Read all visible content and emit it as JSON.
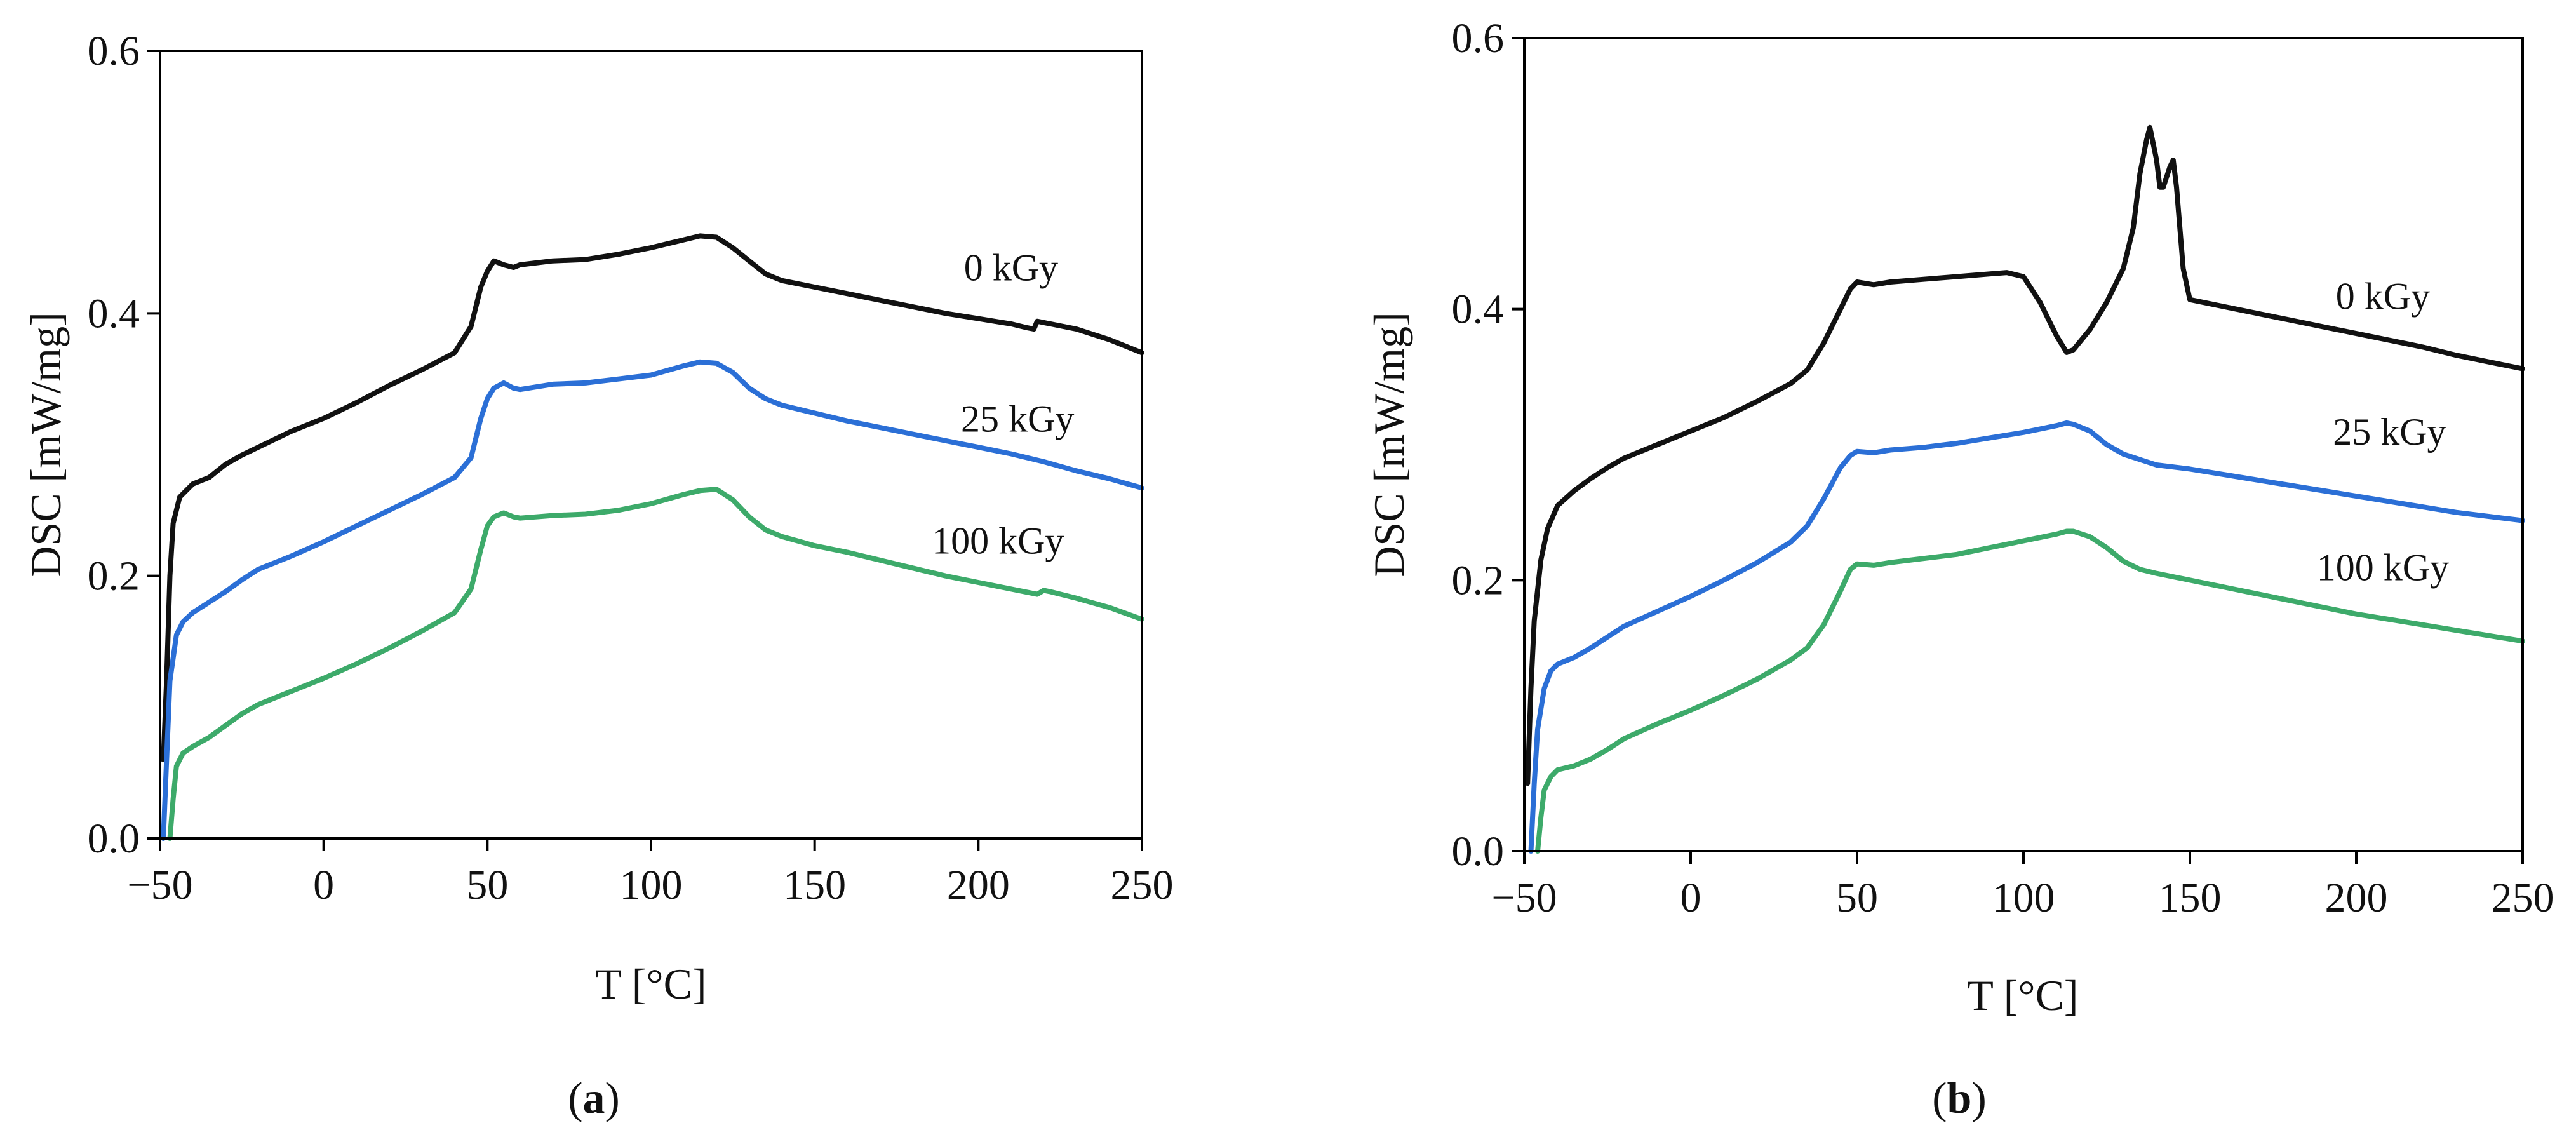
{
  "colors": {
    "0 kGy": "#111111",
    "25 kGy": "#2b6fd6",
    "100 kGy": "#3daa6a"
  },
  "chart_data": [
    {
      "type": "line",
      "panel": "a",
      "caption": {
        "open": "(",
        "letter": "a",
        "close": ")"
      },
      "xlabel": "T [°C]",
      "ylabel": "DSC [mW/mg]",
      "xlim": [
        -50,
        250
      ],
      "ylim": [
        0,
        0.6
      ],
      "xticks": [
        -50,
        0,
        50,
        100,
        150,
        200,
        250
      ],
      "xtick_labels": [
        "−50",
        "0",
        "50",
        "100",
        "150",
        "200",
        "250"
      ],
      "yticks": [
        0,
        0.2,
        0.4,
        0.6
      ],
      "ytick_labels": [
        "0.0",
        "0.2",
        "0.4",
        "0.6"
      ],
      "series": [
        {
          "name": "0 kGy",
          "label_at": [
            210,
            0.425
          ],
          "x": [
            -49,
            -48,
            -47,
            -46,
            -44,
            -42,
            -40,
            -35,
            -30,
            -25,
            -20,
            -10,
            0,
            10,
            20,
            30,
            40,
            45,
            48,
            50,
            52,
            55,
            58,
            60,
            70,
            80,
            90,
            100,
            110,
            115,
            120,
            125,
            130,
            135,
            140,
            150,
            160,
            170,
            180,
            190,
            200,
            210,
            215,
            217,
            218,
            220,
            230,
            240,
            250
          ],
          "y": [
            0.06,
            0.12,
            0.2,
            0.24,
            0.26,
            0.265,
            0.27,
            0.275,
            0.285,
            0.292,
            0.298,
            0.31,
            0.32,
            0.332,
            0.345,
            0.357,
            0.37,
            0.39,
            0.42,
            0.432,
            0.44,
            0.437,
            0.435,
            0.437,
            0.44,
            0.441,
            0.445,
            0.45,
            0.456,
            0.459,
            0.458,
            0.45,
            0.44,
            0.43,
            0.425,
            0.42,
            0.415,
            0.41,
            0.405,
            0.4,
            0.396,
            0.392,
            0.389,
            0.388,
            0.394,
            0.393,
            0.388,
            0.38,
            0.37
          ]
        },
        {
          "name": "25 kGy",
          "label_at": [
            212,
            0.31
          ],
          "x": [
            -49,
            -48,
            -47,
            -45,
            -43,
            -40,
            -35,
            -30,
            -25,
            -20,
            -10,
            0,
            10,
            20,
            30,
            40,
            45,
            48,
            50,
            52,
            55,
            58,
            60,
            70,
            80,
            90,
            100,
            110,
            115,
            120,
            125,
            130,
            135,
            140,
            150,
            160,
            170,
            180,
            190,
            200,
            210,
            220,
            230,
            240,
            250
          ],
          "y": [
            0.0,
            0.06,
            0.12,
            0.155,
            0.165,
            0.172,
            0.18,
            0.188,
            0.197,
            0.205,
            0.215,
            0.226,
            0.238,
            0.25,
            0.262,
            0.275,
            0.29,
            0.32,
            0.335,
            0.343,
            0.347,
            0.343,
            0.342,
            0.346,
            0.347,
            0.35,
            0.353,
            0.36,
            0.363,
            0.362,
            0.355,
            0.343,
            0.335,
            0.33,
            0.324,
            0.318,
            0.313,
            0.308,
            0.303,
            0.298,
            0.293,
            0.287,
            0.28,
            0.274,
            0.267
          ]
        },
        {
          "name": "100 kGy",
          "label_at": [
            206,
            0.217
          ],
          "x": [
            -47,
            -46,
            -45,
            -43,
            -40,
            -35,
            -30,
            -25,
            -20,
            -10,
            0,
            10,
            20,
            30,
            40,
            45,
            48,
            50,
            52,
            55,
            58,
            60,
            70,
            80,
            90,
            100,
            110,
            115,
            120,
            125,
            130,
            135,
            140,
            150,
            160,
            170,
            180,
            190,
            200,
            210,
            218,
            220,
            222,
            230,
            240,
            250
          ],
          "y": [
            0.0,
            0.03,
            0.055,
            0.065,
            0.07,
            0.077,
            0.086,
            0.095,
            0.102,
            0.112,
            0.122,
            0.133,
            0.145,
            0.158,
            0.172,
            0.19,
            0.22,
            0.238,
            0.245,
            0.248,
            0.245,
            0.244,
            0.246,
            0.247,
            0.25,
            0.255,
            0.262,
            0.265,
            0.266,
            0.258,
            0.245,
            0.235,
            0.23,
            0.223,
            0.218,
            0.212,
            0.206,
            0.2,
            0.195,
            0.19,
            0.186,
            0.189,
            0.188,
            0.183,
            0.176,
            0.167
          ]
        }
      ]
    },
    {
      "type": "line",
      "panel": "b",
      "caption": {
        "open": "(",
        "letter": "b",
        "close": ")"
      },
      "xlabel": "T [°C]",
      "ylabel": "DSC [mW/mg]",
      "xlim": [
        -50,
        250
      ],
      "ylim": [
        0,
        0.6
      ],
      "xticks": [
        -50,
        0,
        50,
        100,
        150,
        200,
        250
      ],
      "xtick_labels": [
        "−50",
        "0",
        "50",
        "100",
        "150",
        "200",
        "250"
      ],
      "yticks": [
        0,
        0.2,
        0.4,
        0.6
      ],
      "ytick_labels": [
        "0.0",
        "0.2",
        "0.4",
        "0.6"
      ],
      "series": [
        {
          "name": "0 kGy",
          "label_at": [
            208,
            0.4
          ],
          "x": [
            -49,
            -48,
            -47,
            -45,
            -43,
            -40,
            -35,
            -30,
            -25,
            -20,
            -10,
            0,
            10,
            20,
            30,
            35,
            40,
            45,
            48,
            50,
            55,
            60,
            70,
            80,
            90,
            95,
            100,
            105,
            110,
            113,
            115,
            120,
            125,
            130,
            133,
            135,
            137,
            138,
            140,
            141,
            142,
            144,
            145,
            146,
            148,
            150,
            160,
            170,
            180,
            190,
            200,
            210,
            220,
            230,
            240,
            250
          ],
          "y": [
            0.05,
            0.12,
            0.17,
            0.215,
            0.238,
            0.255,
            0.266,
            0.275,
            0.283,
            0.29,
            0.3,
            0.31,
            0.32,
            0.332,
            0.345,
            0.355,
            0.375,
            0.4,
            0.415,
            0.42,
            0.418,
            0.42,
            0.422,
            0.424,
            0.426,
            0.427,
            0.424,
            0.405,
            0.38,
            0.368,
            0.37,
            0.385,
            0.405,
            0.43,
            0.46,
            0.5,
            0.525,
            0.534,
            0.51,
            0.49,
            0.49,
            0.505,
            0.51,
            0.49,
            0.43,
            0.407,
            0.402,
            0.397,
            0.392,
            0.387,
            0.382,
            0.377,
            0.372,
            0.366,
            0.361,
            0.356
          ]
        },
        {
          "name": "25 kGy",
          "label_at": [
            210,
            0.3
          ],
          "x": [
            -48,
            -47,
            -46,
            -44,
            -42,
            -40,
            -35,
            -30,
            -25,
            -20,
            -10,
            0,
            10,
            20,
            30,
            35,
            40,
            45,
            48,
            50,
            55,
            60,
            70,
            80,
            90,
            100,
            110,
            113,
            115,
            120,
            125,
            130,
            135,
            140,
            150,
            160,
            170,
            180,
            190,
            200,
            210,
            220,
            230,
            240,
            250
          ],
          "y": [
            0.0,
            0.05,
            0.09,
            0.12,
            0.133,
            0.138,
            0.143,
            0.15,
            0.158,
            0.166,
            0.177,
            0.188,
            0.2,
            0.213,
            0.228,
            0.24,
            0.26,
            0.283,
            0.292,
            0.295,
            0.294,
            0.296,
            0.298,
            0.301,
            0.305,
            0.309,
            0.314,
            0.316,
            0.315,
            0.31,
            0.3,
            0.293,
            0.289,
            0.285,
            0.282,
            0.278,
            0.274,
            0.27,
            0.266,
            0.262,
            0.258,
            0.254,
            0.25,
            0.247,
            0.244
          ]
        },
        {
          "name": "100 kGy",
          "label_at": [
            208,
            0.2
          ],
          "x": [
            -46,
            -45,
            -44,
            -42,
            -40,
            -35,
            -30,
            -25,
            -20,
            -10,
            0,
            10,
            20,
            30,
            35,
            40,
            45,
            48,
            50,
            55,
            60,
            70,
            80,
            90,
            100,
            110,
            113,
            115,
            120,
            125,
            130,
            135,
            140,
            150,
            160,
            170,
            180,
            190,
            200,
            210,
            220,
            230,
            240,
            250
          ],
          "y": [
            0.0,
            0.025,
            0.045,
            0.055,
            0.06,
            0.063,
            0.068,
            0.075,
            0.083,
            0.094,
            0.104,
            0.115,
            0.127,
            0.141,
            0.15,
            0.167,
            0.192,
            0.208,
            0.212,
            0.211,
            0.213,
            0.216,
            0.219,
            0.224,
            0.229,
            0.234,
            0.236,
            0.236,
            0.232,
            0.224,
            0.214,
            0.208,
            0.205,
            0.2,
            0.195,
            0.19,
            0.185,
            0.18,
            0.175,
            0.171,
            0.167,
            0.163,
            0.159,
            0.155
          ]
        }
      ]
    }
  ]
}
